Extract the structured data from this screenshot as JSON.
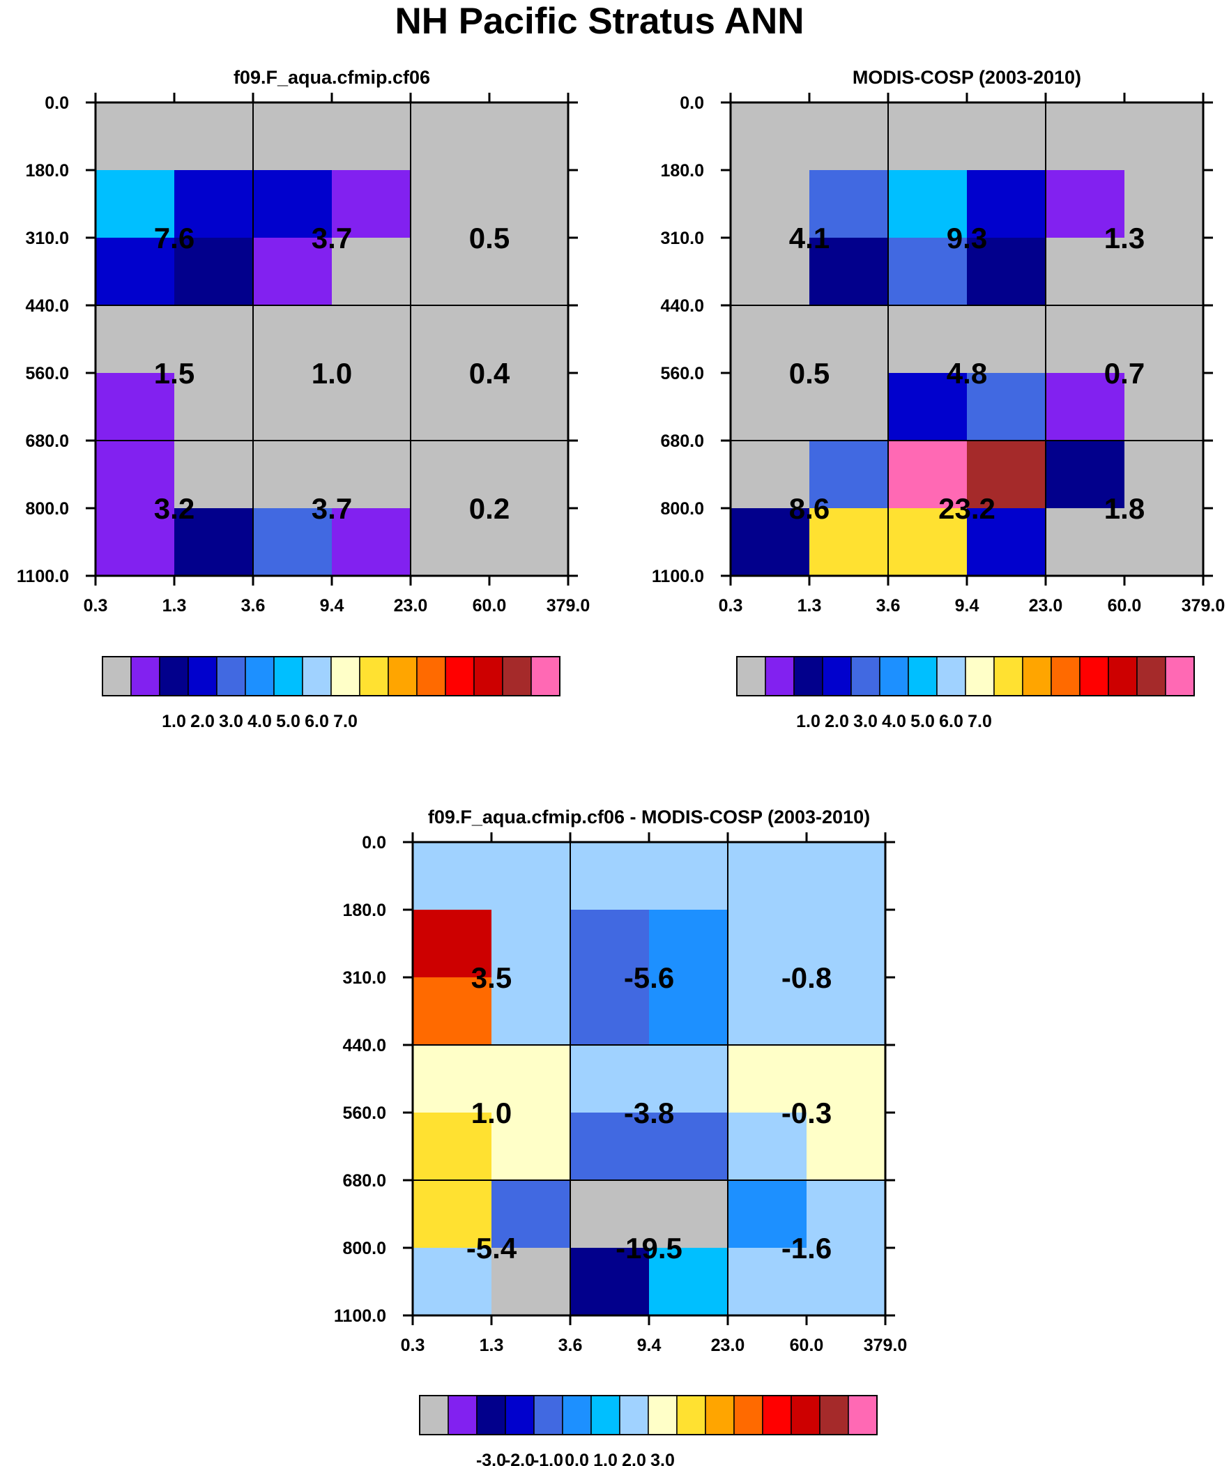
{
  "title": "NH Pacific Stratus ANN",
  "colors": {
    "palette": [
      "#c0c0c0",
      "#8221f0",
      "#02008c",
      "#0101cd",
      "#4169e1",
      "#1d90ff",
      "#00bfff",
      "#a0d2ff",
      "#ffffc8",
      "#ffe131",
      "#ffa500",
      "#ff6a00",
      "#ff0000",
      "#cd0000",
      "#a52a2a",
      "#ff69b4"
    ]
  },
  "chart_data": [
    {
      "type": "heatmap",
      "title": "f09.F_aqua.cfmip.cf06",
      "x_ticks": [
        "0.3",
        "1.3",
        "3.6",
        "9.4",
        "23.0",
        "60.0",
        "379.0"
      ],
      "y_ticks": [
        "0.0",
        "180.0",
        "310.0",
        "440.0",
        "560.0",
        "680.0",
        "800.0",
        "1100.0"
      ],
      "cells": [
        [
          0,
          0,
          0,
          0,
          0,
          0
        ],
        [
          6,
          3,
          3,
          1,
          0,
          0
        ],
        [
          3,
          2,
          1,
          0,
          0,
          0
        ],
        [
          0,
          0,
          0,
          0,
          0,
          0
        ],
        [
          1,
          0,
          0,
          0,
          0,
          0
        ],
        [
          1,
          0,
          0,
          0,
          0,
          0
        ],
        [
          1,
          2,
          4,
          1,
          0,
          0
        ]
      ],
      "group_labels": [
        [
          "7.6",
          "3.7",
          "0.5"
        ],
        [
          "1.5",
          "1.0",
          "0.4"
        ],
        [
          "3.2",
          "3.7",
          "0.2"
        ]
      ],
      "colorbar_ticks": [
        "1.0",
        "2.0",
        "3.0",
        "4.0",
        "5.0",
        "6.0",
        "7.0"
      ]
    },
    {
      "type": "heatmap",
      "title": "MODIS-COSP (2003-2010)",
      "x_ticks": [
        "0.3",
        "1.3",
        "3.6",
        "9.4",
        "23.0",
        "60.0",
        "379.0"
      ],
      "y_ticks": [
        "0.0",
        "180.0",
        "310.0",
        "440.0",
        "560.0",
        "680.0",
        "800.0",
        "1100.0"
      ],
      "cells": [
        [
          0,
          0,
          0,
          0,
          0,
          0
        ],
        [
          0,
          4,
          6,
          3,
          1,
          0
        ],
        [
          0,
          2,
          4,
          2,
          0,
          0
        ],
        [
          0,
          0,
          0,
          0,
          0,
          0
        ],
        [
          0,
          0,
          3,
          4,
          1,
          0
        ],
        [
          0,
          4,
          15,
          14,
          2,
          0
        ],
        [
          2,
          9,
          9,
          3,
          0,
          0
        ]
      ],
      "group_labels": [
        [
          "4.1",
          "9.3",
          "1.3"
        ],
        [
          "0.5",
          "4.8",
          "0.7"
        ],
        [
          "8.6",
          "23.2",
          "1.8"
        ]
      ],
      "colorbar_ticks": [
        "1.0",
        "2.0",
        "3.0",
        "4.0",
        "5.0",
        "6.0",
        "7.0"
      ]
    },
    {
      "type": "heatmap",
      "title": "f09.F_aqua.cfmip.cf06 - MODIS-COSP (2003-2010)",
      "x_ticks": [
        "0.3",
        "1.3",
        "3.6",
        "9.4",
        "23.0",
        "60.0",
        "379.0"
      ],
      "y_ticks": [
        "0.0",
        "180.0",
        "310.0",
        "440.0",
        "560.0",
        "680.0",
        "800.0",
        "1100.0"
      ],
      "cells": [
        [
          7,
          7,
          7,
          7,
          7,
          7
        ],
        [
          13,
          7,
          4,
          5,
          7,
          7
        ],
        [
          11,
          7,
          4,
          5,
          7,
          7
        ],
        [
          8,
          8,
          7,
          7,
          8,
          8
        ],
        [
          9,
          8,
          4,
          4,
          7,
          8
        ],
        [
          9,
          4,
          0,
          0,
          5,
          7
        ],
        [
          7,
          0,
          2,
          6,
          7,
          7
        ]
      ],
      "group_labels": [
        [
          "3.5",
          "-5.6",
          "-0.8"
        ],
        [
          "1.0",
          "-3.8",
          "-0.3"
        ],
        [
          "-5.4",
          "-19.5",
          "-1.6"
        ]
      ],
      "colorbar_ticks": [
        "-3.0",
        "-2.0",
        "-1.0",
        "0.0",
        "1.0",
        "2.0",
        "3.0"
      ]
    }
  ]
}
